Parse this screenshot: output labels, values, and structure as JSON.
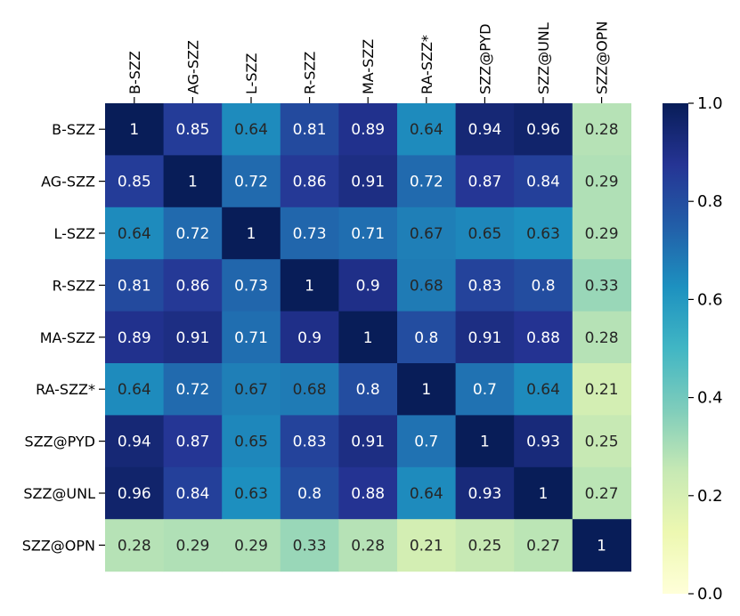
{
  "chart_data": {
    "type": "heatmap",
    "title": "",
    "x_labels": [
      "B-SZZ",
      "AG-SZZ",
      "L-SZZ",
      "R-SZZ",
      "MA-SZZ",
      "RA-SZZ*",
      "SZZ@PYD",
      "SZZ@UNL",
      "SZZ@OPN"
    ],
    "y_labels": [
      "B-SZZ",
      "AG-SZZ",
      "L-SZZ",
      "R-SZZ",
      "MA-SZZ",
      "RA-SZZ*",
      "SZZ@PYD",
      "SZZ@UNL",
      "SZZ@OPN"
    ],
    "values": [
      [
        1,
        0.85,
        0.64,
        0.81,
        0.89,
        0.64,
        0.94,
        0.96,
        0.28
      ],
      [
        0.85,
        1,
        0.72,
        0.86,
        0.91,
        0.72,
        0.87,
        0.84,
        0.29
      ],
      [
        0.64,
        0.72,
        1,
        0.73,
        0.71,
        0.67,
        0.65,
        0.63,
        0.29
      ],
      [
        0.81,
        0.86,
        0.73,
        1,
        0.9,
        0.68,
        0.83,
        0.8,
        0.33
      ],
      [
        0.89,
        0.91,
        0.71,
        0.9,
        1,
        0.8,
        0.91,
        0.88,
        0.28
      ],
      [
        0.64,
        0.72,
        0.67,
        0.68,
        0.8,
        1,
        0.7,
        0.64,
        0.21
      ],
      [
        0.94,
        0.87,
        0.65,
        0.83,
        0.91,
        0.7,
        1,
        0.93,
        0.25
      ],
      [
        0.96,
        0.84,
        0.63,
        0.8,
        0.88,
        0.64,
        0.93,
        1,
        0.27
      ],
      [
        0.28,
        0.29,
        0.29,
        0.33,
        0.28,
        0.21,
        0.25,
        0.27,
        1
      ]
    ],
    "colorbar": {
      "range": [
        0,
        1
      ],
      "ticks": [
        0.0,
        0.2,
        0.4,
        0.6,
        0.8,
        1.0
      ],
      "tick_labels": [
        "0.0",
        "0.2",
        "0.4",
        "0.6",
        "0.8",
        "1.0"
      ],
      "colormap": "YlGnBu"
    },
    "x_axis_position": "top",
    "grid": false,
    "colors": {
      "light_text": "#ffffff",
      "dark_text": "#262626"
    }
  }
}
